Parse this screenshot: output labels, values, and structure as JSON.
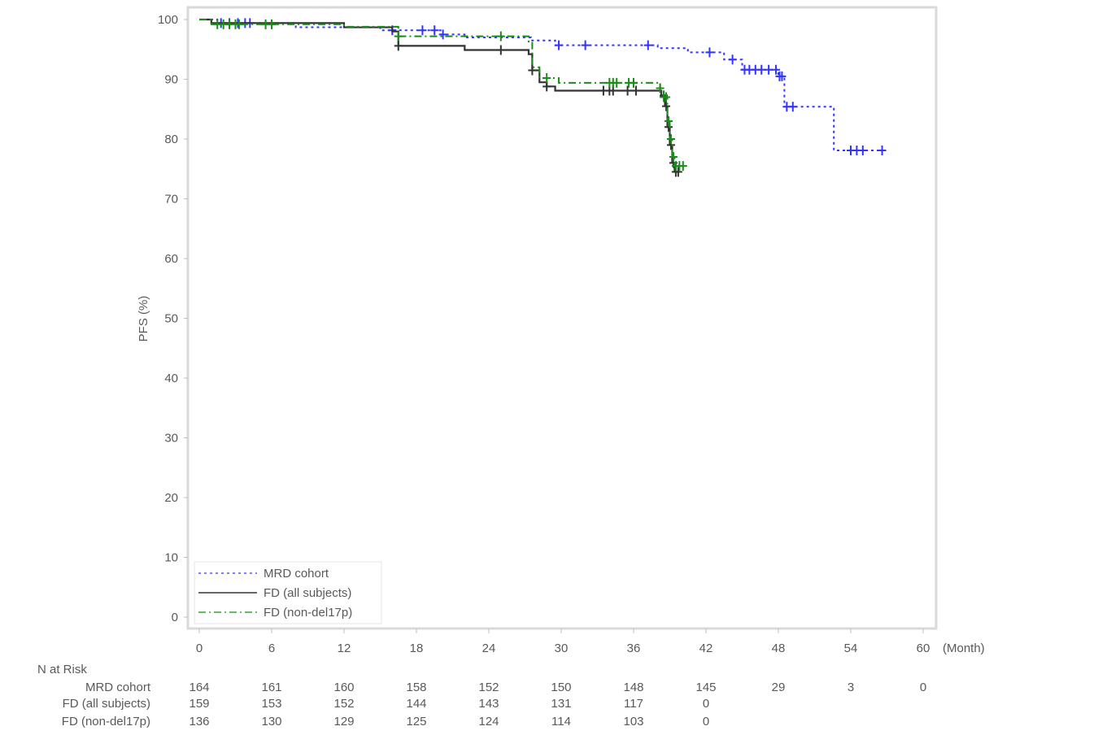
{
  "chart_data": {
    "type": "line",
    "subtype": "kaplan-meier step",
    "title": "",
    "xlabel": "(Month)",
    "ylabel": "PFS (%)",
    "xlim": [
      0,
      60
    ],
    "ylim": [
      0,
      100
    ],
    "x_ticks": [
      0,
      6,
      12,
      18,
      24,
      30,
      36,
      42,
      48,
      54,
      60
    ],
    "y_ticks": [
      0,
      10,
      20,
      30,
      40,
      50,
      60,
      70,
      80,
      90,
      100
    ],
    "grid": false,
    "legend_position": "lower-left inside",
    "series": [
      {
        "name": "MRD cohort",
        "color": "#3333ff",
        "style": "dotted",
        "steps": [
          [
            0,
            100
          ],
          [
            1.5,
            99.4
          ],
          [
            8,
            98.7
          ],
          [
            15,
            98.2
          ],
          [
            20,
            97.5
          ],
          [
            22,
            97.0
          ],
          [
            27.5,
            96.5
          ],
          [
            29.5,
            95.7
          ],
          [
            38,
            95.2
          ],
          [
            40.5,
            94.5
          ],
          [
            43.5,
            93.3
          ],
          [
            45,
            91.6
          ],
          [
            48,
            90.5
          ],
          [
            48.5,
            85.4
          ],
          [
            52.5,
            85.4
          ],
          [
            52.6,
            78.1
          ],
          [
            56.5,
            78.1
          ]
        ],
        "censor_x": [
          1.8,
          2.5,
          3.2,
          3.8,
          4.2,
          16,
          18.5,
          19.5,
          20.2,
          29.8,
          32,
          37.2,
          42.3,
          44.2,
          45.2,
          45.6,
          46.1,
          46.6,
          47.2,
          47.8,
          48.1,
          48.3,
          48.7,
          49.2,
          54,
          54.5,
          55,
          56.6
        ]
      },
      {
        "name": "FD (all subjects)",
        "color": "#333333",
        "style": "solid",
        "steps": [
          [
            0,
            100
          ],
          [
            1,
            99.4
          ],
          [
            12,
            98.7
          ],
          [
            16,
            98.0
          ],
          [
            16.5,
            95.6
          ],
          [
            22,
            94.9
          ],
          [
            27.3,
            94.2
          ],
          [
            27.6,
            91.5
          ],
          [
            28.2,
            89.5
          ],
          [
            28.8,
            88.8
          ],
          [
            29.5,
            88.1
          ],
          [
            38.3,
            87.3
          ],
          [
            38.6,
            85.5
          ],
          [
            38.8,
            82.0
          ],
          [
            39.0,
            79.0
          ],
          [
            39.2,
            76.0
          ],
          [
            39.4,
            74.5
          ],
          [
            39.8,
            74.5
          ]
        ],
        "censor_x": [
          16.5,
          25,
          27.6,
          28.8,
          33.5,
          34,
          34.3,
          35.5,
          36.2,
          38.5,
          38.7,
          38.9,
          39.1,
          39.3,
          39.5,
          39.7
        ]
      },
      {
        "name": "FD (non-del17p)",
        "color": "#1a8c1a",
        "style": "dash-dot",
        "steps": [
          [
            0,
            100
          ],
          [
            1,
            99.2
          ],
          [
            12,
            98.8
          ],
          [
            16.5,
            97.2
          ],
          [
            27.3,
            96.3
          ],
          [
            27.6,
            92.0
          ],
          [
            28.2,
            90.2
          ],
          [
            29.8,
            89.4
          ],
          [
            38.2,
            88.5
          ],
          [
            38.5,
            87.0
          ],
          [
            38.8,
            83.0
          ],
          [
            39.0,
            80.0
          ],
          [
            39.2,
            77.0
          ],
          [
            39.4,
            75.5
          ],
          [
            40.0,
            75.5
          ]
        ],
        "censor_x": [
          1.5,
          2,
          2.5,
          3,
          3.3,
          5.5,
          6,
          16.5,
          25,
          28.8,
          34,
          34.3,
          34.6,
          35.6,
          36,
          38.2,
          38.5,
          38.7,
          38.9,
          39.1,
          39.3,
          39.5,
          39.8,
          40.1
        ]
      }
    ],
    "risk_table": {
      "header": "N at Risk",
      "times": [
        0,
        6,
        12,
        18,
        24,
        30,
        36,
        42,
        48,
        54,
        60
      ],
      "rows": [
        {
          "label": "MRD cohort",
          "values": [
            "164",
            "161",
            "160",
            "158",
            "152",
            "150",
            "148",
            "145",
            "29",
            "3",
            "0"
          ]
        },
        {
          "label": "FD (all subjects)",
          "values": [
            "159",
            "153",
            "152",
            "144",
            "143",
            "131",
            "117",
            "0",
            "",
            "",
            ""
          ]
        },
        {
          "label": "FD (non-del17p)",
          "values": [
            "136",
            "130",
            "129",
            "125",
            "124",
            "114",
            "103",
            "0",
            "",
            "",
            ""
          ]
        }
      ]
    }
  },
  "colors": {
    "frame": "#d9d9d9",
    "text": "#595959",
    "mrd": "#3333ff",
    "fd_all": "#333333",
    "fd_non": "#1a8c1a",
    "legend_mrd": "#8080ff",
    "legend_fd_all": "#666666",
    "legend_fd_non": "#66bb66"
  }
}
